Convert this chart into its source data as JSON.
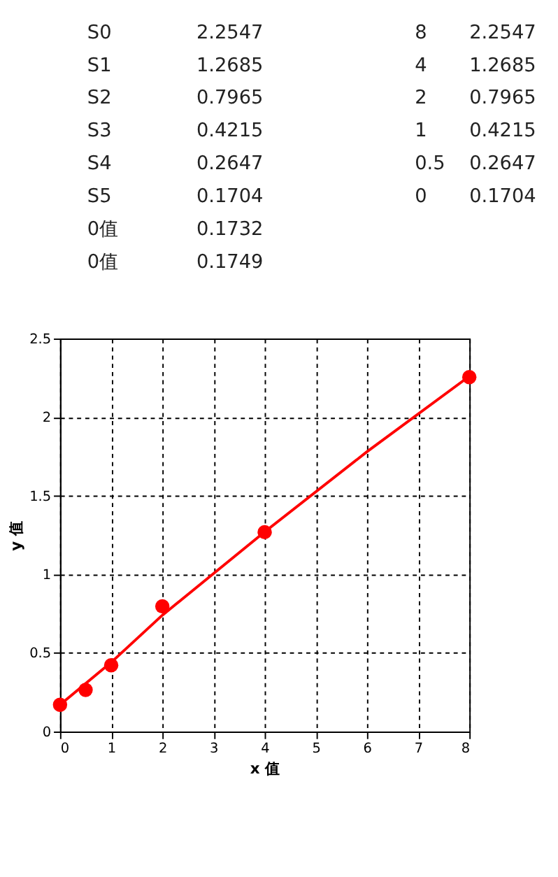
{
  "chart_data": {
    "type": "scatter",
    "xlabel": "x 值",
    "ylabel": "y 值",
    "xlim": [
      0,
      8
    ],
    "xticks": [
      0,
      1,
      2,
      3,
      4,
      5,
      6,
      7,
      8
    ],
    "ylim": [
      0,
      2.5
    ],
    "yticks": [
      0,
      0.5,
      1,
      1.5,
      2,
      2.5
    ],
    "grid": true,
    "marker": "circle",
    "series": [
      {
        "color": "#ff0000",
        "x": [
          0,
          0.5,
          1,
          2,
          4,
          8
        ],
        "values": [
          0.1704,
          0.2647,
          0.4215,
          0.7965,
          1.2685,
          2.2547
        ]
      },
      {
        "type": "line",
        "marker": "none",
        "color": "#ff0000",
        "line_style": "solid",
        "x": [
          0,
          1,
          2,
          4,
          6,
          8
        ],
        "values": [
          0.17,
          0.44,
          0.74,
          1.27,
          1.78,
          2.26
        ]
      }
    ],
    "annotations": [
      "S0 2.2547 8 2.2547",
      "S1 1.2685 4 1.2685",
      "S2 0.7965 2 0.7965",
      "S3 0.4215 1 0.4215",
      "S4 0.2647 0.5 0.2647",
      "S5 0.1704 0 0.1704",
      "0值 0.1732",
      "0值 0.1749"
    ]
  }
}
